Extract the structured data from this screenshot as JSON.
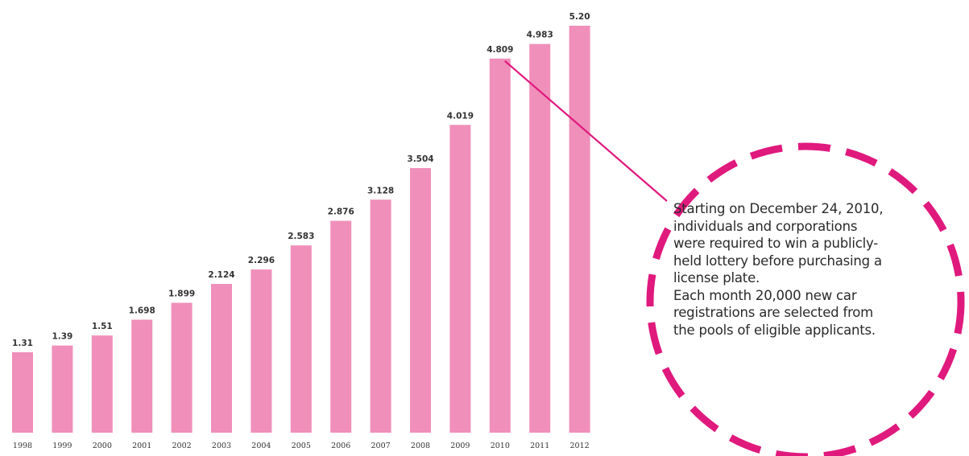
{
  "title_fragment": "",
  "chart_data": {
    "type": "bar",
    "categories": [
      "1998",
      "1999",
      "2000",
      "2001",
      "2002",
      "2003",
      "2004",
      "2005",
      "2006",
      "2007",
      "2008",
      "2009",
      "2010",
      "2011",
      "2012"
    ],
    "values": [
      1.31,
      1.39,
      1.51,
      1.698,
      1.899,
      2.124,
      2.296,
      2.583,
      2.876,
      3.128,
      3.504,
      4.019,
      4.809,
      4.983,
      5.2
    ],
    "value_labels": [
      "1.31",
      "1.39",
      "1.51",
      "1.698",
      "1.899",
      "2.124",
      "2.296",
      "2.583",
      "2.876",
      "3.128",
      "3.504",
      "4.019",
      "4.809",
      "4.983",
      "5.20"
    ],
    "bar_color": "#f08fba",
    "title": "",
    "xlabel": "",
    "ylabel": "",
    "grid": false,
    "legend": "none"
  },
  "callout": {
    "circle_color": "#e0197d",
    "connector_from_category": "2010",
    "paragraphs": [
      "Starting on December 24, 2010,\nindividuals and corporations\nwere required to win a publicly-\nheld lottery before purchasing a\nlicense plate.",
      "Each month 20,000 new car\nregistrations are selected  from\nthe pools of eligible applicants."
    ]
  }
}
